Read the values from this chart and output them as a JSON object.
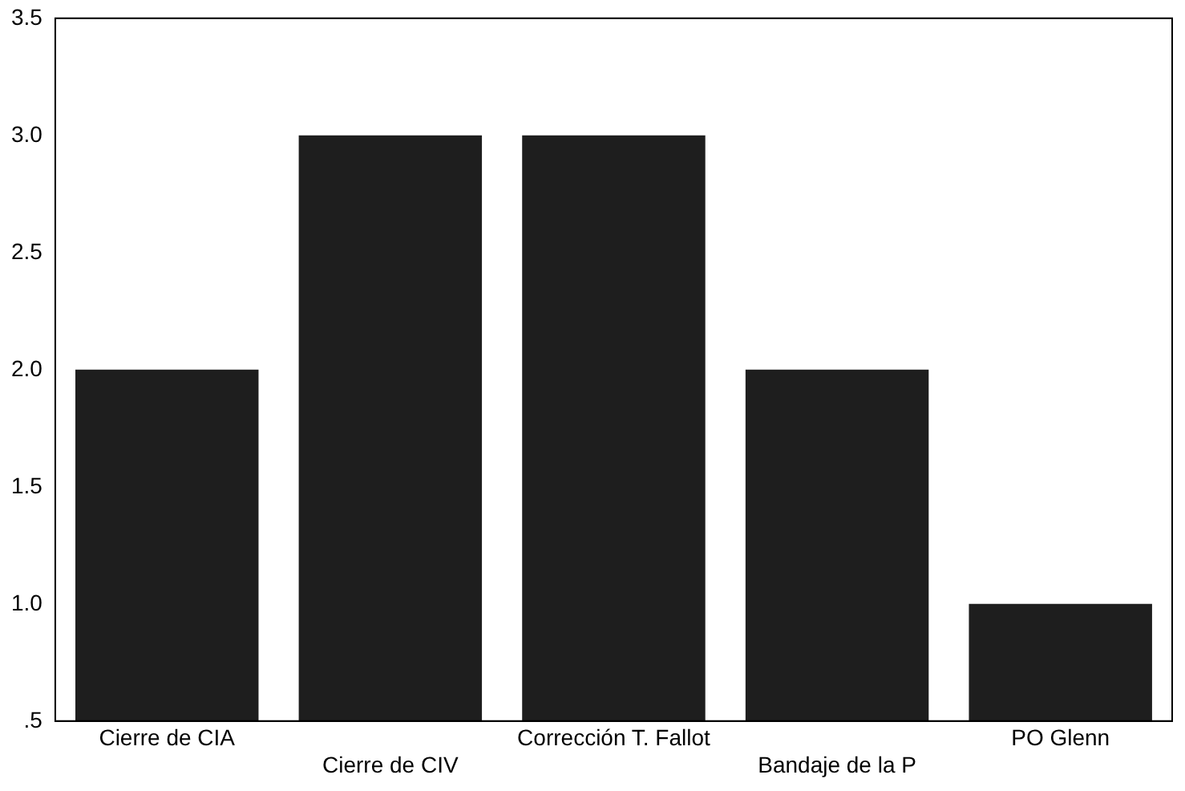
{
  "chart_data": {
    "type": "bar",
    "categories": [
      "Cierre de CIA",
      "Cierre de CIV",
      "Corrección T. Fallot",
      "Bandaje de la P",
      "PO Glenn"
    ],
    "values": [
      2,
      3,
      3,
      2,
      1
    ],
    "color": "#1e1e1e",
    "ylim": [
      0.5,
      3.5
    ],
    "yticks": [
      {
        "value": 0.5,
        "label": ".5"
      },
      {
        "value": 1,
        "label": "1.0"
      },
      {
        "value": 1.5,
        "label": "1.5"
      },
      {
        "value": 2,
        "label": "2.0"
      },
      {
        "value": 2.5,
        "label": "2.5"
      },
      {
        "value": 3,
        "label": "3.0"
      },
      {
        "value": 3.5,
        "label": "3.5"
      }
    ],
    "grid": false,
    "legend": false
  }
}
